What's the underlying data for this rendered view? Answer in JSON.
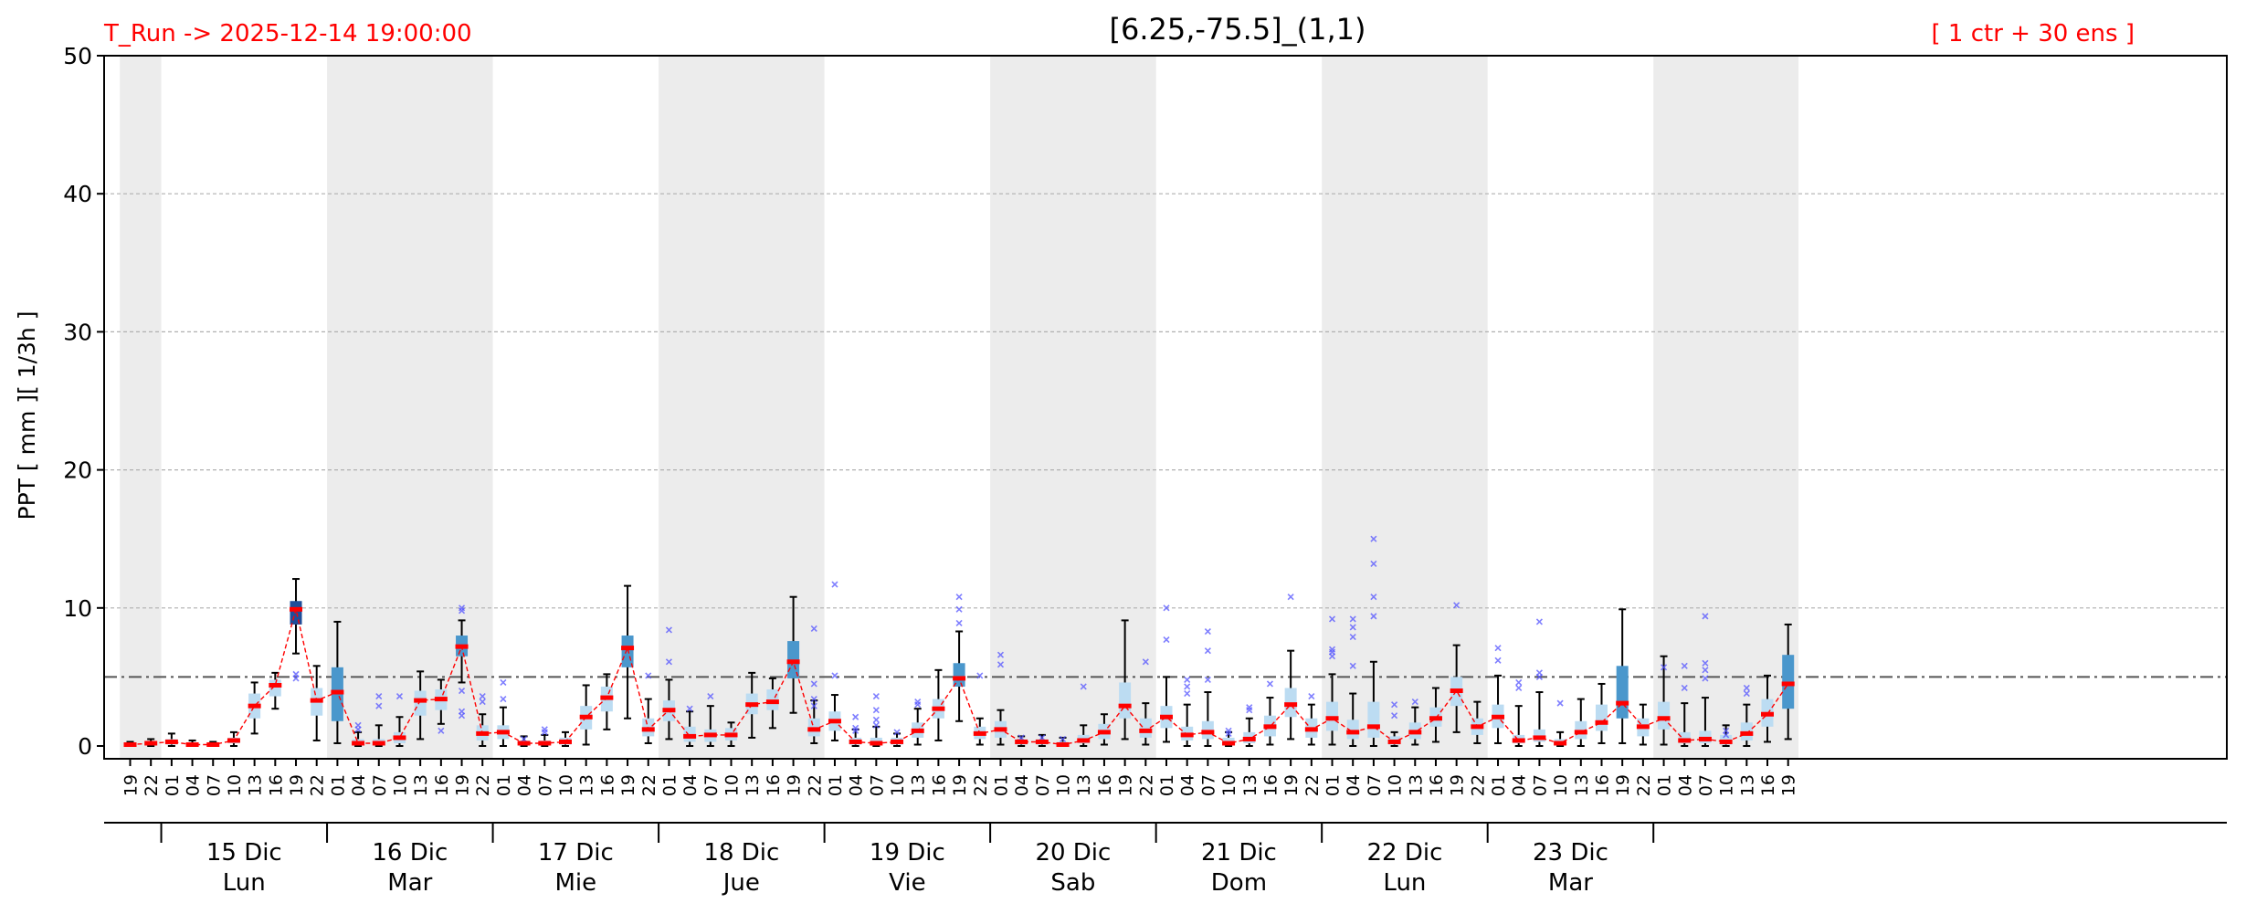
{
  "chart_data": {
    "type": "box",
    "title": "[6.25,-75.5]_(1,1)",
    "left_label": "T_Run -> 2025-12-14  19:00:00",
    "right_label": "[ 1 ctr + 30 ens ]",
    "ylabel": "PPT  [ mm ][ 1/3h ]",
    "ylim": [
      0,
      50
    ],
    "yticks": [
      0,
      10,
      20,
      30,
      40,
      50
    ],
    "threshold": 5,
    "grid": "y-dashed",
    "times": [
      {
        "label": "19",
        "median": 0.1,
        "q1": 0.0,
        "q3": 0.2,
        "low": 0.0,
        "high": 0.3,
        "out": []
      },
      {
        "label": "22",
        "median": 0.2,
        "q1": 0.1,
        "q3": 0.3,
        "low": 0.0,
        "high": 0.5,
        "out": []
      },
      {
        "label": "01",
        "median": 0.3,
        "q1": 0.1,
        "q3": 0.5,
        "low": 0.0,
        "high": 0.9,
        "out": []
      },
      {
        "label": "04",
        "median": 0.1,
        "q1": 0.0,
        "q3": 0.2,
        "low": 0.0,
        "high": 0.4,
        "out": []
      },
      {
        "label": "07",
        "median": 0.1,
        "q1": 0.0,
        "q3": 0.2,
        "low": 0.0,
        "high": 0.3,
        "out": []
      },
      {
        "label": "10",
        "median": 0.4,
        "q1": 0.2,
        "q3": 0.6,
        "low": 0.0,
        "high": 1.0,
        "out": []
      },
      {
        "label": "13",
        "median": 2.9,
        "q1": 2.0,
        "q3": 3.8,
        "low": 0.9,
        "high": 4.6,
        "out": []
      },
      {
        "label": "16",
        "median": 4.4,
        "q1": 3.6,
        "q3": 4.8,
        "low": 2.7,
        "high": 5.3,
        "out": []
      },
      {
        "label": "19",
        "median": 9.9,
        "q1": 8.8,
        "q3": 10.5,
        "low": 6.7,
        "high": 12.1,
        "out": [
          5.2,
          4.9
        ]
      },
      {
        "label": "22",
        "median": 3.3,
        "q1": 2.2,
        "q3": 4.2,
        "low": 0.4,
        "high": 5.8,
        "out": []
      },
      {
        "label": "01",
        "median": 3.9,
        "q1": 1.8,
        "q3": 5.7,
        "low": 0.2,
        "high": 9.0,
        "out": []
      },
      {
        "label": "04",
        "median": 0.2,
        "q1": 0.1,
        "q3": 0.5,
        "low": 0.0,
        "high": 1.0,
        "out": [
          1.5,
          1.2
        ]
      },
      {
        "label": "07",
        "median": 0.2,
        "q1": 0.1,
        "q3": 0.5,
        "low": 0.0,
        "high": 1.5,
        "out": [
          3.6,
          2.9
        ]
      },
      {
        "label": "10",
        "median": 0.6,
        "q1": 0.2,
        "q3": 1.0,
        "low": 0.0,
        "high": 2.1,
        "out": [
          3.6
        ]
      },
      {
        "label": "13",
        "median": 3.3,
        "q1": 2.2,
        "q3": 4.0,
        "low": 0.5,
        "high": 5.4,
        "out": []
      },
      {
        "label": "16",
        "median": 3.4,
        "q1": 2.6,
        "q3": 4.1,
        "low": 1.6,
        "high": 4.8,
        "out": [
          1.1
        ]
      },
      {
        "label": "19",
        "median": 7.2,
        "q1": 6.5,
        "q3": 8.0,
        "low": 4.6,
        "high": 9.1,
        "out": [
          10.0,
          9.8,
          4.0,
          2.5,
          2.2
        ]
      },
      {
        "label": "22",
        "median": 0.9,
        "q1": 0.4,
        "q3": 1.5,
        "low": 0.0,
        "high": 2.3,
        "out": [
          3.6,
          3.2
        ]
      },
      {
        "label": "01",
        "median": 1.0,
        "q1": 0.5,
        "q3": 1.5,
        "low": 0.0,
        "high": 2.8,
        "out": [
          4.6,
          3.4
        ]
      },
      {
        "label": "04",
        "median": 0.2,
        "q1": 0.1,
        "q3": 0.4,
        "low": 0.0,
        "high": 0.7,
        "out": [
          0.5
        ]
      },
      {
        "label": "07",
        "median": 0.2,
        "q1": 0.1,
        "q3": 0.4,
        "low": 0.0,
        "high": 0.8,
        "out": [
          1.2,
          1.0
        ]
      },
      {
        "label": "10",
        "median": 0.3,
        "q1": 0.1,
        "q3": 0.6,
        "low": 0.0,
        "high": 1.0,
        "out": []
      },
      {
        "label": "13",
        "median": 2.1,
        "q1": 1.2,
        "q3": 2.9,
        "low": 0.1,
        "high": 4.4,
        "out": []
      },
      {
        "label": "16",
        "median": 3.5,
        "q1": 2.5,
        "q3": 4.3,
        "low": 1.2,
        "high": 5.2,
        "out": []
      },
      {
        "label": "19",
        "median": 7.1,
        "q1": 5.7,
        "q3": 8.0,
        "low": 2.0,
        "high": 11.6,
        "out": []
      },
      {
        "label": "22",
        "median": 1.2,
        "q1": 0.7,
        "q3": 2.0,
        "low": 0.2,
        "high": 3.4,
        "out": [
          5.1
        ]
      },
      {
        "label": "01",
        "median": 2.6,
        "q1": 1.8,
        "q3": 3.3,
        "low": 0.5,
        "high": 4.8,
        "out": [
          8.4,
          6.1
        ]
      },
      {
        "label": "04",
        "median": 0.7,
        "q1": 0.3,
        "q3": 1.4,
        "low": 0.0,
        "high": 2.5,
        "out": [
          2.7
        ]
      },
      {
        "label": "07",
        "median": 0.8,
        "q1": 0.3,
        "q3": 1.2,
        "low": 0.0,
        "high": 2.9,
        "out": [
          3.6
        ]
      },
      {
        "label": "10",
        "median": 0.8,
        "q1": 0.4,
        "q3": 1.3,
        "low": 0.0,
        "high": 1.7,
        "out": []
      },
      {
        "label": "13",
        "median": 3.0,
        "q1": 2.3,
        "q3": 3.8,
        "low": 0.6,
        "high": 5.3,
        "out": []
      },
      {
        "label": "16",
        "median": 3.2,
        "q1": 2.6,
        "q3": 4.1,
        "low": 1.3,
        "high": 4.9,
        "out": []
      },
      {
        "label": "19",
        "median": 6.1,
        "q1": 4.9,
        "q3": 7.6,
        "low": 2.4,
        "high": 10.8,
        "out": []
      },
      {
        "label": "22",
        "median": 1.2,
        "q1": 0.7,
        "q3": 2.0,
        "low": 0.2,
        "high": 3.3,
        "out": [
          8.5,
          4.5,
          3.4,
          2.9
        ]
      },
      {
        "label": "01",
        "median": 1.8,
        "q1": 1.1,
        "q3": 2.5,
        "low": 0.4,
        "high": 3.7,
        "out": [
          11.7,
          5.1
        ]
      },
      {
        "label": "04",
        "median": 0.3,
        "q1": 0.1,
        "q3": 0.6,
        "low": 0.0,
        "high": 1.2,
        "out": [
          2.1,
          1.3,
          1.1
        ]
      },
      {
        "label": "07",
        "median": 0.2,
        "q1": 0.1,
        "q3": 0.6,
        "low": 0.0,
        "high": 1.4,
        "out": [
          3.6,
          2.6,
          1.9,
          1.5
        ]
      },
      {
        "label": "10",
        "median": 0.3,
        "q1": 0.1,
        "q3": 0.6,
        "low": 0.0,
        "high": 0.9,
        "out": [
          1.0
        ]
      },
      {
        "label": "13",
        "median": 1.1,
        "q1": 0.6,
        "q3": 1.7,
        "low": 0.1,
        "high": 2.7,
        "out": [
          3.2,
          3.0
        ]
      },
      {
        "label": "16",
        "median": 2.7,
        "q1": 2.0,
        "q3": 3.4,
        "low": 0.4,
        "high": 5.5,
        "out": []
      },
      {
        "label": "19",
        "median": 4.9,
        "q1": 4.3,
        "q3": 6.0,
        "low": 1.8,
        "high": 8.3,
        "out": [
          10.8,
          9.9,
          8.9
        ]
      },
      {
        "label": "22",
        "median": 0.9,
        "q1": 0.5,
        "q3": 1.4,
        "low": 0.1,
        "high": 2.0,
        "out": [
          5.1
        ]
      },
      {
        "label": "01",
        "median": 1.2,
        "q1": 0.6,
        "q3": 1.8,
        "low": 0.1,
        "high": 2.6,
        "out": [
          6.6,
          5.9
        ]
      },
      {
        "label": "04",
        "median": 0.3,
        "q1": 0.1,
        "q3": 0.5,
        "low": 0.0,
        "high": 0.7,
        "out": [
          0.6
        ]
      },
      {
        "label": "07",
        "median": 0.3,
        "q1": 0.1,
        "q3": 0.5,
        "low": 0.0,
        "high": 0.8,
        "out": [
          0.6
        ]
      },
      {
        "label": "10",
        "median": 0.1,
        "q1": 0.0,
        "q3": 0.3,
        "low": 0.0,
        "high": 0.6,
        "out": [
          0.5
        ]
      },
      {
        "label": "13",
        "median": 0.4,
        "q1": 0.2,
        "q3": 0.8,
        "low": 0.0,
        "high": 1.5,
        "out": [
          4.3
        ]
      },
      {
        "label": "16",
        "median": 1.0,
        "q1": 0.5,
        "q3": 1.6,
        "low": 0.1,
        "high": 2.3,
        "out": []
      },
      {
        "label": "19",
        "median": 2.9,
        "q1": 2.0,
        "q3": 4.6,
        "low": 0.5,
        "high": 9.1,
        "out": []
      },
      {
        "label": "22",
        "median": 1.1,
        "q1": 0.6,
        "q3": 2.0,
        "low": 0.1,
        "high": 3.1,
        "out": [
          6.1
        ]
      },
      {
        "label": "01",
        "median": 2.1,
        "q1": 1.3,
        "q3": 2.9,
        "low": 0.3,
        "high": 5.0,
        "out": [
          10.0,
          7.7
        ]
      },
      {
        "label": "04",
        "median": 0.8,
        "q1": 0.4,
        "q3": 1.4,
        "low": 0.0,
        "high": 3.0,
        "out": [
          4.8,
          4.3,
          3.8
        ]
      },
      {
        "label": "07",
        "median": 1.0,
        "q1": 0.5,
        "q3": 1.8,
        "low": 0.0,
        "high": 3.9,
        "out": [
          8.3,
          6.9,
          4.8
        ]
      },
      {
        "label": "10",
        "median": 0.2,
        "q1": 0.1,
        "q3": 0.6,
        "low": 0.0,
        "high": 1.0,
        "out": [
          1.1,
          0.9
        ]
      },
      {
        "label": "13",
        "median": 0.5,
        "q1": 0.2,
        "q3": 1.0,
        "low": 0.0,
        "high": 2.0,
        "out": [
          2.8,
          2.6
        ]
      },
      {
        "label": "16",
        "median": 1.4,
        "q1": 0.7,
        "q3": 2.2,
        "low": 0.1,
        "high": 3.5,
        "out": [
          4.5
        ]
      },
      {
        "label": "19",
        "median": 3.0,
        "q1": 2.1,
        "q3": 4.2,
        "low": 0.5,
        "high": 6.9,
        "out": [
          10.8
        ]
      },
      {
        "label": "22",
        "median": 1.2,
        "q1": 0.6,
        "q3": 2.0,
        "low": 0.1,
        "high": 3.0,
        "out": [
          3.6
        ]
      },
      {
        "label": "01",
        "median": 2.0,
        "q1": 1.1,
        "q3": 3.2,
        "low": 0.1,
        "high": 5.2,
        "out": [
          9.2,
          7.0,
          6.8,
          6.5
        ]
      },
      {
        "label": "04",
        "median": 1.0,
        "q1": 0.5,
        "q3": 1.9,
        "low": 0.0,
        "high": 3.8,
        "out": [
          9.2,
          8.6,
          7.9,
          5.8
        ]
      },
      {
        "label": "07",
        "median": 1.4,
        "q1": 0.6,
        "q3": 3.2,
        "low": 0.0,
        "high": 6.1,
        "out": [
          15.0,
          13.2,
          10.8,
          9.4
        ]
      },
      {
        "label": "10",
        "median": 0.3,
        "q1": 0.1,
        "q3": 0.7,
        "low": 0.0,
        "high": 1.0,
        "out": [
          3.0,
          2.2
        ]
      },
      {
        "label": "13",
        "median": 1.0,
        "q1": 0.5,
        "q3": 1.7,
        "low": 0.1,
        "high": 2.8,
        "out": [
          3.2
        ]
      },
      {
        "label": "16",
        "median": 2.0,
        "q1": 1.4,
        "q3": 2.8,
        "low": 0.3,
        "high": 4.2,
        "out": []
      },
      {
        "label": "19",
        "median": 4.0,
        "q1": 2.9,
        "q3": 5.0,
        "low": 1.0,
        "high": 7.3,
        "out": [
          10.2
        ]
      },
      {
        "label": "22",
        "median": 1.4,
        "q1": 0.8,
        "q3": 2.0,
        "low": 0.2,
        "high": 3.2,
        "out": []
      },
      {
        "label": "01",
        "median": 2.1,
        "q1": 1.3,
        "q3": 3.0,
        "low": 0.2,
        "high": 5.1,
        "out": [
          7.1,
          6.2
        ]
      },
      {
        "label": "04",
        "median": 0.4,
        "q1": 0.2,
        "q3": 0.8,
        "low": 0.0,
        "high": 2.9,
        "out": [
          4.6,
          4.2
        ]
      },
      {
        "label": "07",
        "median": 0.6,
        "q1": 0.3,
        "q3": 1.2,
        "low": 0.0,
        "high": 3.9,
        "out": [
          9.0,
          5.3,
          5.0
        ]
      },
      {
        "label": "10",
        "median": 0.2,
        "q1": 0.1,
        "q3": 0.5,
        "low": 0.0,
        "high": 1.0,
        "out": [
          3.1
        ]
      },
      {
        "label": "13",
        "median": 1.0,
        "q1": 0.5,
        "q3": 1.8,
        "low": 0.0,
        "high": 3.4,
        "out": []
      },
      {
        "label": "16",
        "median": 1.7,
        "q1": 1.1,
        "q3": 3.0,
        "low": 0.2,
        "high": 4.5,
        "out": []
      },
      {
        "label": "19",
        "median": 3.1,
        "q1": 2.0,
        "q3": 5.8,
        "low": 0.2,
        "high": 9.9,
        "out": []
      },
      {
        "label": "22",
        "median": 1.4,
        "q1": 0.7,
        "q3": 2.0,
        "low": 0.1,
        "high": 3.0,
        "out": []
      },
      {
        "label": "01",
        "median": 2.0,
        "q1": 1.2,
        "q3": 3.2,
        "low": 0.1,
        "high": 6.5,
        "out": [
          5.7
        ]
      },
      {
        "label": "04",
        "median": 0.4,
        "q1": 0.2,
        "q3": 1.0,
        "low": 0.0,
        "high": 3.1,
        "out": [
          5.8,
          4.2
        ]
      },
      {
        "label": "07",
        "median": 0.5,
        "q1": 0.2,
        "q3": 1.1,
        "low": 0.0,
        "high": 3.5,
        "out": [
          9.4,
          6.0,
          5.5,
          4.9
        ]
      },
      {
        "label": "10",
        "median": 0.3,
        "q1": 0.1,
        "q3": 0.8,
        "low": 0.0,
        "high": 1.5,
        "out": [
          1.1,
          0.8
        ]
      },
      {
        "label": "13",
        "median": 0.9,
        "q1": 0.4,
        "q3": 1.7,
        "low": 0.0,
        "high": 3.0,
        "out": [
          4.2,
          3.8
        ]
      },
      {
        "label": "16",
        "median": 2.3,
        "q1": 1.4,
        "q3": 3.4,
        "low": 0.3,
        "high": 5.1,
        "out": []
      },
      {
        "label": "19",
        "median": 4.5,
        "q1": 2.7,
        "q3": 6.6,
        "low": 0.5,
        "high": 8.8,
        "out": []
      }
    ],
    "days": [
      {
        "date": "15 Dic",
        "weekday": "Lun"
      },
      {
        "date": "16 Dic",
        "weekday": "Mar"
      },
      {
        "date": "17 Dic",
        "weekday": "Mie"
      },
      {
        "date": "18 Dic",
        "weekday": "Jue"
      },
      {
        "date": "19 Dic",
        "weekday": "Vie"
      },
      {
        "date": "20 Dic",
        "weekday": "Sab"
      },
      {
        "date": "21 Dic",
        "weekday": "Dom"
      },
      {
        "date": "22 Dic",
        "weekday": "Lun"
      },
      {
        "date": "23 Dic",
        "weekday": "Mar"
      }
    ],
    "colors": {
      "median": "#ff0000",
      "median_line": "#ff0000",
      "outlier": "#5555ff",
      "box_low": "#bcdcf2",
      "box_mid": "#4a97cc",
      "box_high": "#1f4e9a",
      "night_band": "#ececec",
      "threshold": "#555555",
      "header_text": "#ff0000"
    }
  }
}
